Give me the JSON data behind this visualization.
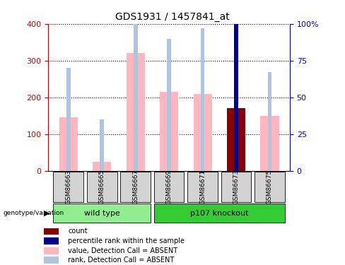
{
  "title": "GDS1931 / 1457841_at",
  "samples": [
    "GSM86663",
    "GSM86665",
    "GSM86667",
    "GSM86669",
    "GSM86671",
    "GSM86673",
    "GSM86675"
  ],
  "value_bars": [
    145,
    25,
    320,
    215,
    210,
    170,
    150
  ],
  "rank_bars": [
    70,
    35,
    133,
    90,
    97,
    102,
    67
  ],
  "value_color": "#FFB6C1",
  "rank_color": "#B0C4DE",
  "count_index": 5,
  "count_value": 170,
  "count_color": "#8B0000",
  "count_rank_value": 102,
  "count_rank_color": "#00008B",
  "ylim_left": [
    0,
    400
  ],
  "ylim_right": [
    0,
    100
  ],
  "yticks_left": [
    0,
    100,
    200,
    300,
    400
  ],
  "yticks_right": [
    0,
    25,
    50,
    75,
    100
  ],
  "yticklabels_right": [
    "0",
    "25",
    "50",
    "75",
    "100%"
  ],
  "left_axis_color": "#CC0000",
  "right_axis_color": "#0000CC",
  "plot_bg": "#FFFFFF",
  "outer_bg": "#F0F0F0",
  "wildtype_color": "#90EE90",
  "knockout_color": "#33CC33",
  "legend_items": [
    {
      "label": "count",
      "color": "#8B0000"
    },
    {
      "label": "percentile rank within the sample",
      "color": "#00008B"
    },
    {
      "label": "value, Detection Call = ABSENT",
      "color": "#FFB6C1"
    },
    {
      "label": "rank, Detection Call = ABSENT",
      "color": "#B0C4DE"
    }
  ]
}
